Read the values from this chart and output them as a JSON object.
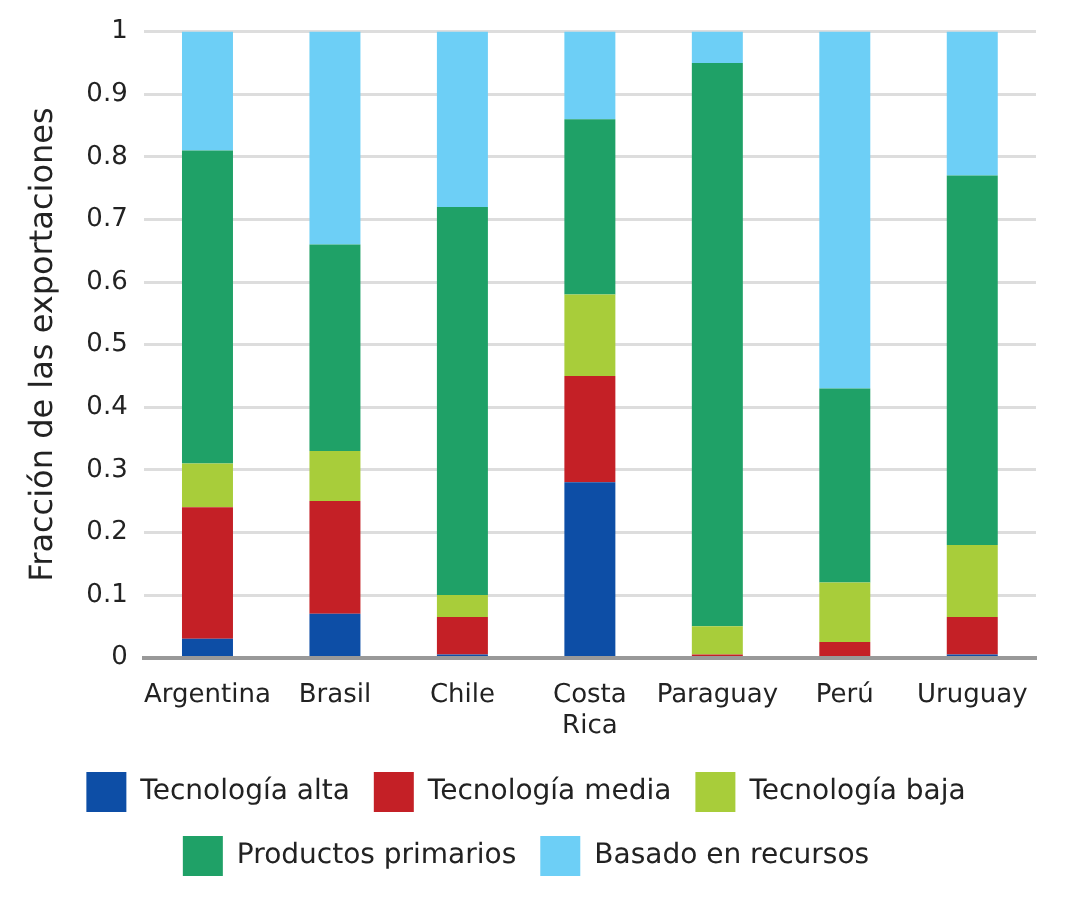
{
  "chart_data": {
    "type": "bar",
    "stacked": true,
    "ylabel": "Fracción de las exportaciones",
    "categories": [
      "Argentina",
      "Brasil",
      "Chile",
      "Costa\nRica",
      "Paraguay",
      "Perú",
      "Uruguay"
    ],
    "series": [
      {
        "name": "Tecnología alta",
        "color": "#0d4ea6",
        "values": [
          0.03,
          0.07,
          0.005,
          0.28,
          0,
          0,
          0.005
        ]
      },
      {
        "name": "Tecnología media",
        "color": "#c42026",
        "values": [
          0.21,
          0.18,
          0.06,
          0.17,
          0.005,
          0.025,
          0.06
        ]
      },
      {
        "name": "Tecnología baja",
        "color": "#a8cd3a",
        "values": [
          0.07,
          0.08,
          0.035,
          0.13,
          0.045,
          0.095,
          0.115
        ]
      },
      {
        "name": "Productos primarios",
        "color": "#1fa167",
        "values": [
          0.5,
          0.33,
          0.62,
          0.28,
          0.9,
          0.31,
          0.59
        ]
      },
      {
        "name": "Basado en recursos",
        "color": "#6dcff6",
        "values": [
          0.19,
          0.34,
          0.28,
          0.14,
          0.05,
          0.57,
          0.23
        ]
      }
    ],
    "ylim": [
      0,
      1
    ],
    "yticks": [
      0,
      0.1,
      0.2,
      0.3,
      0.4,
      0.5,
      0.6,
      0.7,
      0.8,
      0.9,
      1
    ],
    "grid": "y",
    "legend": "bottom"
  }
}
